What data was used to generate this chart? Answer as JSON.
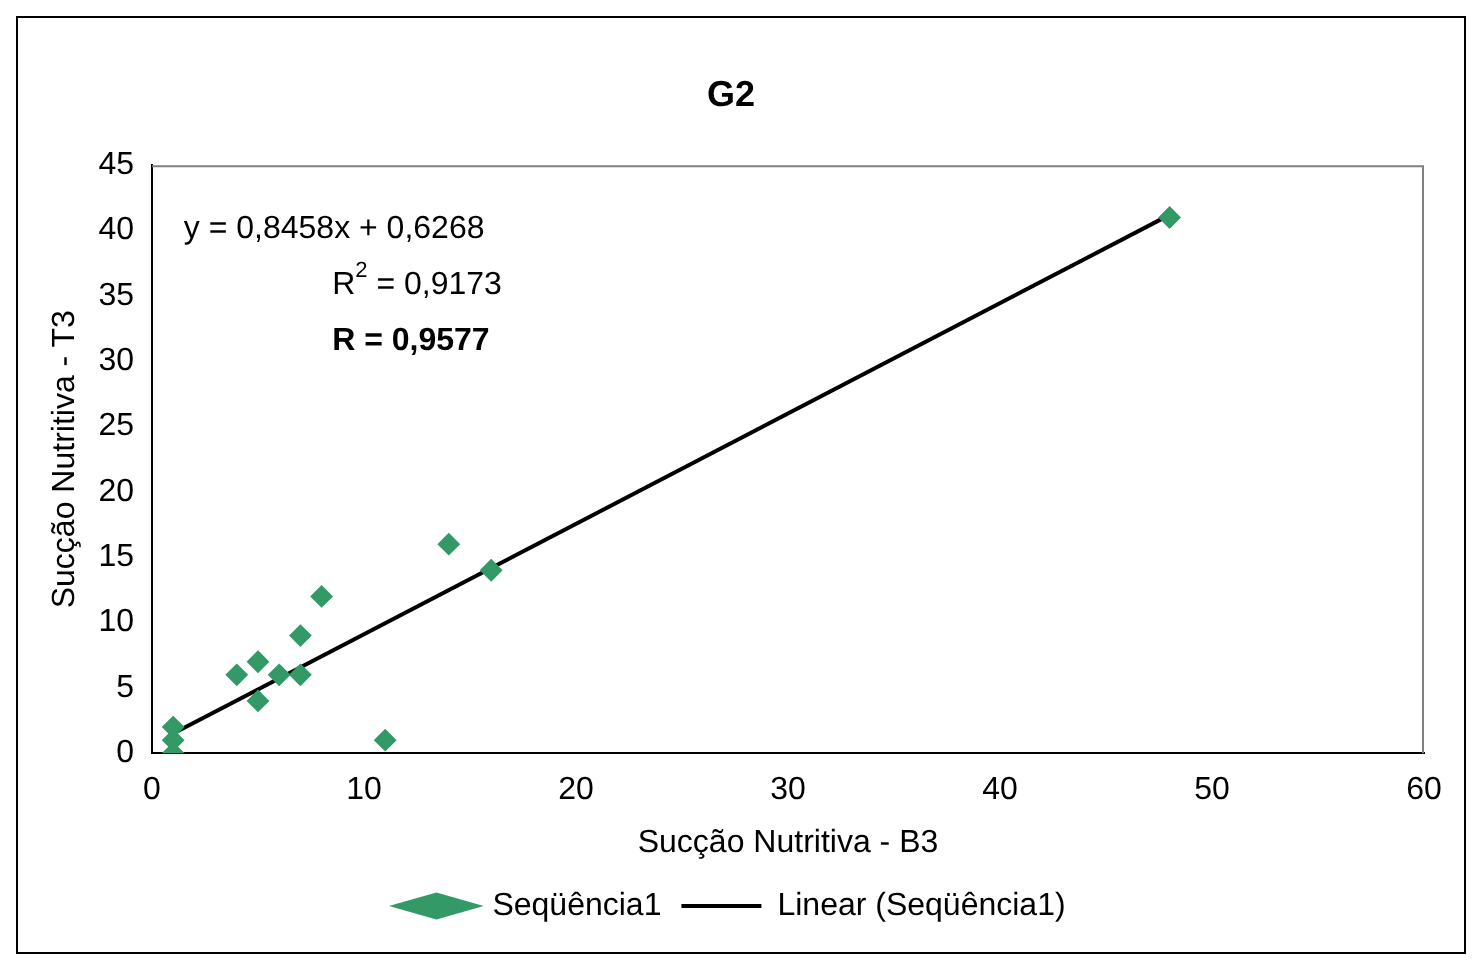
{
  "chart_data": {
    "type": "scatter",
    "title": "G2",
    "xlabel": "Sucção Nutritiva - B3",
    "ylabel": "Sucção Nutritiva - T3",
    "xlim": [
      0,
      60
    ],
    "xticks": [
      0,
      10,
      20,
      30,
      40,
      50,
      60
    ],
    "ylim": [
      0,
      45
    ],
    "yticks": [
      0,
      5,
      10,
      15,
      20,
      25,
      30,
      35,
      40,
      45
    ],
    "grid": false,
    "legend": "bottom",
    "marker": "diamond",
    "annotations": [
      "y = 0,8458x + 0,6268",
      "R$^{2}$ = 0,9173",
      "R = 0,9577"
    ],
    "series": [
      {
        "name": "Seqüência1",
        "color": "#339966",
        "x": [
          1,
          1,
          1,
          4,
          5,
          5,
          6,
          7,
          7,
          8,
          11,
          14,
          16,
          48
        ],
        "values": [
          0,
          1,
          2,
          6,
          7,
          4,
          6,
          9,
          6,
          12,
          1,
          16,
          14,
          41
        ]
      },
      {
        "name": "Linear (Seqüência1)",
        "type": "line",
        "color": "#000000",
        "marker": "none",
        "x": [
          1,
          48
        ],
        "values": [
          1.5,
          41.2
        ]
      }
    ]
  }
}
